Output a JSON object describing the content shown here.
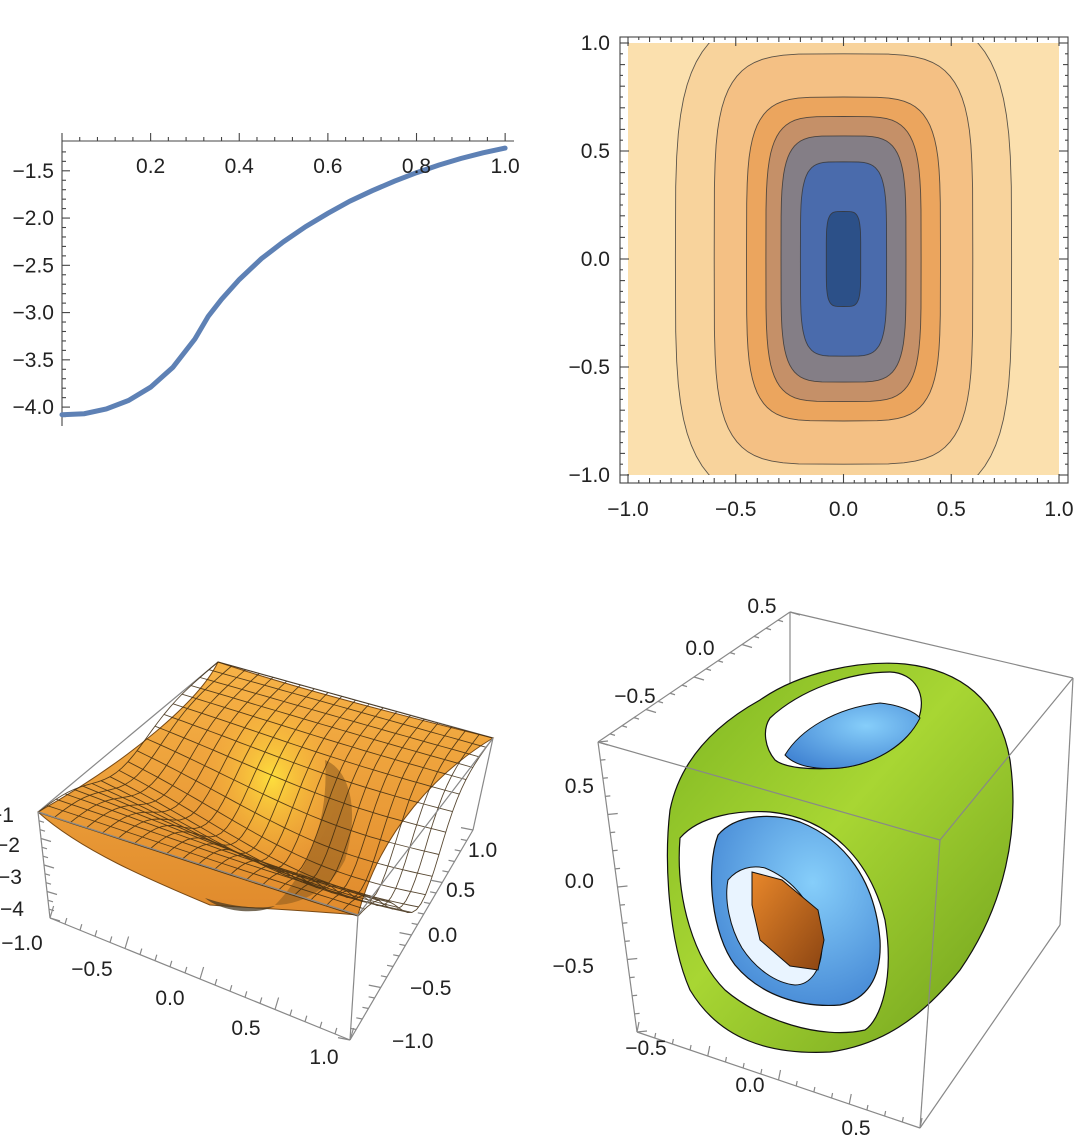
{
  "chart_data": [
    {
      "type": "line",
      "title": "",
      "x_ticks": [
        "0.2",
        "0.4",
        "0.6",
        "0.8",
        "1.0"
      ],
      "y_ticks": [
        "-1.5",
        "-2.0",
        "-2.5",
        "-3.0",
        "-3.5",
        "-4.0"
      ],
      "xlim": [
        0,
        1.02
      ],
      "ylim": [
        -4.2,
        -1.1
      ],
      "series": [
        {
          "color": "#5E81B5",
          "x": [
            0.0,
            0.05,
            0.1,
            0.15,
            0.2,
            0.25,
            0.3,
            0.33,
            0.36,
            0.4,
            0.45,
            0.5,
            0.55,
            0.6,
            0.65,
            0.7,
            0.75,
            0.8,
            0.85,
            0.9,
            0.95,
            1.0
          ],
          "y": [
            -4.08,
            -4.07,
            -4.02,
            -3.93,
            -3.79,
            -3.58,
            -3.28,
            -3.04,
            -2.86,
            -2.65,
            -2.43,
            -2.25,
            -2.09,
            -1.95,
            -1.82,
            -1.71,
            -1.61,
            -1.52,
            -1.44,
            -1.37,
            -1.31,
            -1.26
          ]
        }
      ]
    },
    {
      "type": "contour",
      "title": "",
      "x_ticks": [
        "-1.0",
        "-0.5",
        "0.0",
        "0.5",
        "1.0"
      ],
      "y_ticks": [
        "1.0",
        "0.5",
        "0.0",
        "-0.5",
        "-1.0"
      ],
      "xlim": [
        -1,
        1
      ],
      "ylim": [
        -1,
        1
      ],
      "levels": [
        {
          "color": "#FDEFC5",
          "rx": 1.55,
          "ry": 1.8
        },
        {
          "color": "#FBE0AE",
          "rx": 1.2,
          "ry": 1.5
        },
        {
          "color": "#F8D39C",
          "rx": 0.78,
          "ry": 1.14
        },
        {
          "color": "#F4C084",
          "rx": 0.6,
          "ry": 0.95
        },
        {
          "color": "#EBA55E",
          "rx": 0.45,
          "ry": 0.75
        },
        {
          "color": "#C59068",
          "rx": 0.36,
          "ry": 0.66
        },
        {
          "color": "#847E86",
          "rx": 0.29,
          "ry": 0.57
        },
        {
          "color": "#4A6BAC",
          "rx": 0.2,
          "ry": 0.45
        },
        {
          "color": "#2C5088",
          "rx": 0.08,
          "ry": 0.22
        }
      ]
    },
    {
      "type": "surface3d",
      "title": "",
      "x_ticks": [
        "-0.5",
        "0.0",
        "0.5",
        "1.0"
      ],
      "x_end_tick": "-1.0",
      "y_ticks": [
        "-1.0",
        "-0.5",
        "0.0",
        "0.5",
        "1.0"
      ],
      "z_ticks": [
        "-1",
        "-2",
        "-3",
        "-4"
      ],
      "surface_color": "#F5A53A",
      "highlight_color": "#FFE53C",
      "mesh_lines": 20
    },
    {
      "type": "contour3d",
      "title": "",
      "y_ticks_top": [
        "0.5",
        "0.0",
        "-0.5"
      ],
      "z_ticks": [
        "0.5",
        "0.0",
        "-0.5"
      ],
      "x_ticks_bottom": [
        "-0.5",
        "0.0",
        "0.5"
      ],
      "shell_colors": [
        "#9CCB2E",
        "#5AA0E6",
        "#C8651A"
      ]
    }
  ]
}
